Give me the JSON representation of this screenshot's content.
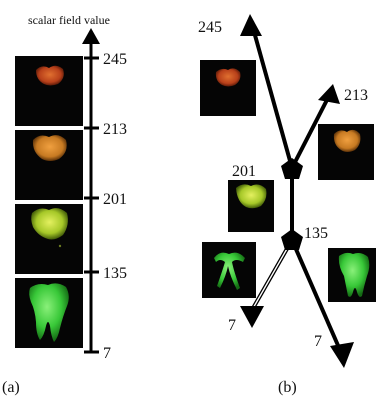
{
  "panel_a": {
    "axis_title": "scalar field value",
    "ticks": [
      "245",
      "213",
      "201",
      "135",
      "7"
    ],
    "caption": "(a)"
  },
  "panel_b": {
    "labels": {
      "top_left": "245",
      "top_right": "213",
      "node_upper": "201",
      "node_lower": "135",
      "bottom_left": "7",
      "bottom_right": "7"
    },
    "caption": "(b)"
  },
  "colors": {
    "line": "#000000",
    "tile_background": "#050505",
    "tooth_orange": "#c8501e",
    "tooth_amber": "#d88a2a",
    "tooth_yellow_green": "#b7d62a",
    "tooth_green": "#3ccf3c"
  }
}
